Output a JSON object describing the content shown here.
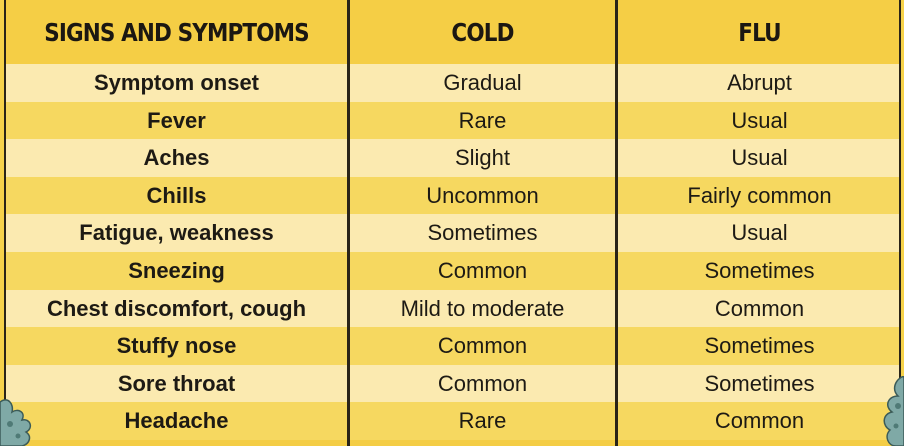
{
  "headers": {
    "signs": "SIGNS AND SYMPTOMS",
    "cold": "COLD",
    "flu": "FLU"
  },
  "rows": [
    {
      "symptom": "Symptom onset",
      "cold": "Gradual",
      "flu": "Abrupt"
    },
    {
      "symptom": "Fever",
      "cold": "Rare",
      "flu": "Usual"
    },
    {
      "symptom": "Aches",
      "cold": "Slight",
      "flu": "Usual"
    },
    {
      "symptom": "Chills",
      "cold": "Uncommon",
      "flu": "Fairly common"
    },
    {
      "symptom": "Fatigue, weakness",
      "cold": "Sometimes",
      "flu": "Usual"
    },
    {
      "symptom": "Sneezing",
      "cold": "Common",
      "flu": "Sometimes"
    },
    {
      "symptom": "Chest discomfort, cough",
      "cold": "Mild to moderate",
      "flu": "Common"
    },
    {
      "symptom": "Stuffy nose",
      "cold": "Common",
      "flu": "Sometimes"
    },
    {
      "symptom": "Sore throat",
      "cold": "Common",
      "flu": "Sometimes"
    },
    {
      "symptom": "Headache",
      "cold": "Rare",
      "flu": "Common"
    }
  ],
  "colors": {
    "header_bg": "#f5ce45",
    "row_light": "#fbeab0",
    "row_dark": "#f6d860",
    "grid_line": "#2a2418",
    "germ": "#7fa9a6"
  }
}
